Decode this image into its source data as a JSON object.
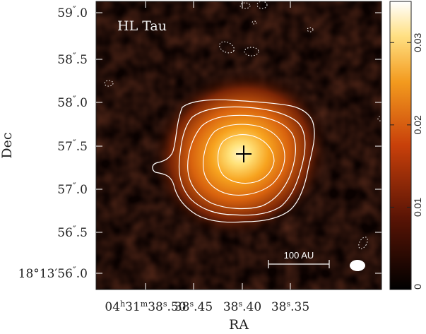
{
  "chart_data": {
    "type": "heatmap",
    "title": "",
    "source_label": "HL Tau",
    "xlabel": "RA",
    "ylabel": "Dec",
    "x_tick_labels": [
      {
        "pre": "04",
        "h": "h",
        "a": "31",
        "m": "m",
        "b": "38",
        "s": "s",
        "c": ".50"
      },
      {
        "pre": "38",
        "s": "s",
        "c": ".45"
      },
      {
        "pre": "38",
        "s": "s",
        "c": ".40"
      },
      {
        "pre": "38",
        "s": "s",
        "c": ".35"
      }
    ],
    "y_tick_labels": [
      {
        "pre": "18°13′",
        "a": "56",
        "c": ".0"
      },
      {
        "a": "56",
        "c": ".5"
      },
      {
        "a": "57",
        "c": ".0"
      },
      {
        "a": "57",
        "c": ".5"
      },
      {
        "a": "58",
        "c": ".0"
      },
      {
        "a": "58",
        "c": ".5"
      },
      {
        "a": "59",
        "c": ".0"
      }
    ],
    "colorbar": {
      "range": [
        0,
        0.035
      ],
      "ticks": [
        "0",
        "0.01",
        "0.02",
        "0.03"
      ],
      "tick_values": [
        0,
        0.01,
        0.02,
        0.03
      ]
    },
    "scale_bar_label": "100 AU",
    "peak": {
      "ra_offset_s": 0.42,
      "dec_arcsec": 57.37
    },
    "colors": {
      "low": "#000000",
      "mid": "#c8400a",
      "high": "#ffffff",
      "contour": "#ffffff",
      "frame": "#222222"
    }
  }
}
